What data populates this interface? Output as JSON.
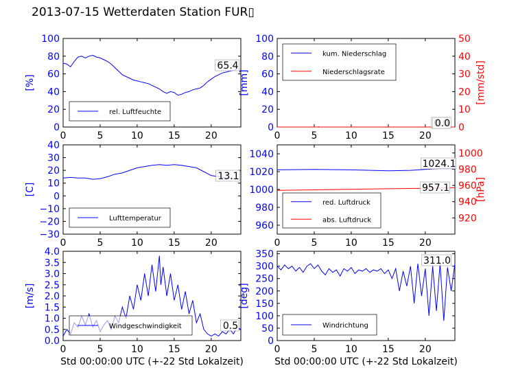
{
  "title": "2013-07-15 Wetterdaten Station FUR▯",
  "xlabel": "Std 00:00:00 UTC (+-22 Std Lokalzeit)",
  "colors": {
    "primary": "#0000ff",
    "secondary": "#ff0000",
    "axis": "#000000"
  },
  "chart_data": [
    {
      "id": "humidity",
      "type": "line",
      "xlim": [
        0,
        24
      ],
      "ylim": [
        0,
        100
      ],
      "xticks": [
        "0",
        "5",
        "10",
        "15",
        "20"
      ],
      "yticks": [
        "0",
        "20",
        "40",
        "60",
        "80",
        "100"
      ],
      "ylabel": "[%]",
      "legend": [
        "rel. Luftfeuchte"
      ],
      "legend_position": "lower-left",
      "annotations": [
        "65.4"
      ],
      "series": [
        {
          "name": "rel. Luftfeuchte",
          "color": "#0000ff",
          "points": [
            [
              0,
              72
            ],
            [
              0.5,
              71
            ],
            [
              1,
              68
            ],
            [
              1.5,
              74
            ],
            [
              2,
              79
            ],
            [
              2.5,
              80
            ],
            [
              3,
              78
            ],
            [
              3.5,
              80
            ],
            [
              4,
              81
            ],
            [
              4.5,
              79
            ],
            [
              5,
              78
            ],
            [
              5.5,
              76
            ],
            [
              6,
              74
            ],
            [
              6.5,
              71
            ],
            [
              7,
              67
            ],
            [
              7.5,
              63
            ],
            [
              8,
              59
            ],
            [
              8.5,
              57
            ],
            [
              9,
              55
            ],
            [
              9.5,
              53
            ],
            [
              10,
              52
            ],
            [
              10.5,
              51
            ],
            [
              11,
              50
            ],
            [
              11.5,
              49
            ],
            [
              12,
              47
            ],
            [
              12.5,
              45
            ],
            [
              13,
              43
            ],
            [
              13.5,
              40
            ],
            [
              14,
              38
            ],
            [
              14.5,
              40
            ],
            [
              15,
              39
            ],
            [
              15.5,
              36
            ],
            [
              16,
              37
            ],
            [
              16.5,
              39
            ],
            [
              17,
              40
            ],
            [
              17.5,
              42
            ],
            [
              18,
              43
            ],
            [
              18.5,
              44
            ],
            [
              19,
              47
            ],
            [
              19.5,
              51
            ],
            [
              20,
              54
            ],
            [
              20.5,
              57
            ],
            [
              21,
              59
            ],
            [
              21.5,
              61
            ],
            [
              22,
              62
            ],
            [
              22.5,
              63
            ],
            [
              23,
              64
            ],
            [
              23.5,
              65.4
            ]
          ]
        }
      ]
    },
    {
      "id": "precipitation",
      "type": "line",
      "xlim": [
        0,
        24
      ],
      "ylim": [
        0,
        100
      ],
      "y2lim": [
        0,
        50
      ],
      "xticks": [
        "0",
        "5",
        "10",
        "15",
        "20"
      ],
      "yticks": [
        "0",
        "20",
        "40",
        "60",
        "80",
        "100"
      ],
      "y2ticks": [
        "0",
        "10",
        "20",
        "30",
        "40",
        "50"
      ],
      "ylabel": "[mm]",
      "y2label": "[mm/std]",
      "legend": [
        "kum. Niederschlag",
        "Niederschlagsrate"
      ],
      "legend_position": "top-left",
      "annotations": [
        "0.0",
        "0.0"
      ],
      "series": [
        {
          "name": "kum. Niederschlag",
          "color": "#0000ff",
          "axis": "left",
          "points": [
            [
              0,
              0
            ],
            [
              24,
              0
            ]
          ]
        },
        {
          "name": "Niederschlagsrate",
          "color": "#ff0000",
          "axis": "right",
          "points": [
            [
              0,
              0
            ],
            [
              5.5,
              0
            ],
            [
              5.6,
              0.2
            ],
            [
              5.7,
              0
            ],
            [
              24,
              0
            ]
          ]
        }
      ]
    },
    {
      "id": "temperature",
      "type": "line",
      "xlim": [
        0,
        24
      ],
      "ylim": [
        -30,
        40
      ],
      "xticks": [
        "0",
        "5",
        "10",
        "15",
        "20"
      ],
      "yticks": [
        "−30",
        "−20",
        "−10",
        "0",
        "10",
        "20",
        "30",
        "40"
      ],
      "ylabel": "[C]",
      "legend": [
        "Lufttemperatur"
      ],
      "legend_position": "lower-left",
      "annotations": [
        "13.1"
      ],
      "series": [
        {
          "name": "Lufttemperatur",
          "color": "#0000ff",
          "points": [
            [
              0,
              14
            ],
            [
              1,
              14.5
            ],
            [
              2,
              14
            ],
            [
              3,
              14
            ],
            [
              4,
              13
            ],
            [
              5,
              13.5
            ],
            [
              6,
              15
            ],
            [
              7,
              17
            ],
            [
              8,
              18
            ],
            [
              9,
              20
            ],
            [
              10,
              22
            ],
            [
              11,
              23
            ],
            [
              12,
              24
            ],
            [
              13,
              24.5
            ],
            [
              14,
              24
            ],
            [
              15,
              24.5
            ],
            [
              16,
              24
            ],
            [
              17,
              23
            ],
            [
              18,
              22
            ],
            [
              19,
              19
            ],
            [
              20,
              16
            ],
            [
              21,
              15
            ],
            [
              22,
              14
            ],
            [
              23,
              13.5
            ],
            [
              23.8,
              13.1
            ]
          ]
        }
      ]
    },
    {
      "id": "pressure",
      "type": "line",
      "xlim": [
        0,
        24
      ],
      "ylim": [
        950,
        1050
      ],
      "y2lim": [
        900,
        1010
      ],
      "xticks": [
        "0",
        "5",
        "10",
        "15",
        "20"
      ],
      "yticks": [
        "960",
        "980",
        "1000",
        "1020",
        "1040"
      ],
      "y2ticks": [
        "920",
        "940",
        "960",
        "980",
        "1000"
      ],
      "y2label": "[hPa]",
      "legend": [
        "red. Luftdruck",
        "abs. Luftdruck"
      ],
      "legend_position": "lower-left",
      "annotations": [
        "1024.1",
        "957.1"
      ],
      "series": [
        {
          "name": "red. Luftdruck",
          "color": "#0000ff",
          "axis": "left",
          "points": [
            [
              0,
              1022
            ],
            [
              5,
              1022.5
            ],
            [
              10,
              1022
            ],
            [
              15,
              1021
            ],
            [
              18,
              1021.5
            ],
            [
              20,
              1022.5
            ],
            [
              22,
              1023.5
            ],
            [
              24,
              1024.1
            ]
          ]
        },
        {
          "name": "abs. Luftdruck",
          "color": "#ff0000",
          "axis": "right",
          "points": [
            [
              0,
              954
            ],
            [
              4,
              954.5
            ],
            [
              8,
              955
            ],
            [
              12,
              955.5
            ],
            [
              16,
              956
            ],
            [
              20,
              956.5
            ],
            [
              24,
              957.1
            ]
          ]
        }
      ]
    },
    {
      "id": "windspeed",
      "type": "line",
      "xlim": [
        0,
        24
      ],
      "ylim": [
        0,
        4
      ],
      "xticks": [
        "0",
        "5",
        "10",
        "15",
        "20"
      ],
      "yticks": [
        "0.0",
        "0.5",
        "1.0",
        "1.5",
        "2.0",
        "2.5",
        "3.0",
        "3.5",
        "4.0"
      ],
      "ylabel": "[m/s]",
      "xlabel": "Std 00:00:00 UTC (+-22 Std Lokalzeit)",
      "legend": [
        "Windgeschwindigkeit"
      ],
      "legend_position": "lower-left",
      "annotations": [
        "0.5"
      ],
      "series": [
        {
          "name": "Windgeschwindigkeit",
          "color": "#0000ff",
          "points": [
            [
              0,
              0.2
            ],
            [
              0.5,
              0.5
            ],
            [
              1,
              0.3
            ],
            [
              1.5,
              0.8
            ],
            [
              2,
              0.6
            ],
            [
              2.5,
              1.1
            ],
            [
              3,
              0.7
            ],
            [
              3.5,
              1.2
            ],
            [
              4,
              0.6
            ],
            [
              4.5,
              0.9
            ],
            [
              5,
              0.4
            ],
            [
              5.5,
              0.7
            ],
            [
              6,
              0.9
            ],
            [
              6.5,
              0.5
            ],
            [
              7,
              1.1
            ],
            [
              7.5,
              0.8
            ],
            [
              8,
              1.5
            ],
            [
              8.5,
              1.0
            ],
            [
              9,
              2.0
            ],
            [
              9.5,
              1.4
            ],
            [
              10,
              2.5
            ],
            [
              10.5,
              1.8
            ],
            [
              11,
              3.0
            ],
            [
              11.5,
              2.0
            ],
            [
              12,
              3.4
            ],
            [
              12.5,
              2.2
            ],
            [
              13,
              3.8
            ],
            [
              13.2,
              2.5
            ],
            [
              13.5,
              3.3
            ],
            [
              14,
              2.0
            ],
            [
              14.5,
              3.0
            ],
            [
              15,
              1.8
            ],
            [
              15.5,
              2.5
            ],
            [
              16,
              1.4
            ],
            [
              16.5,
              2.2
            ],
            [
              17,
              1.2
            ],
            [
              17.5,
              1.8
            ],
            [
              18,
              0.8
            ],
            [
              18.5,
              1.2
            ],
            [
              19,
              0.5
            ],
            [
              19.5,
              0.3
            ],
            [
              20,
              0.2
            ],
            [
              20.5,
              0.3
            ],
            [
              21,
              0.2
            ],
            [
              21.5,
              0.4
            ],
            [
              22,
              0.3
            ],
            [
              22.5,
              0.5
            ],
            [
              23,
              0.3
            ],
            [
              23.5,
              0.6
            ],
            [
              24,
              0.5
            ]
          ]
        }
      ]
    },
    {
      "id": "winddirection",
      "type": "line",
      "xlim": [
        0,
        24
      ],
      "ylim": [
        0,
        360
      ],
      "xticks": [
        "0",
        "5",
        "10",
        "15",
        "20"
      ],
      "yticks": [
        "0",
        "50",
        "100",
        "150",
        "200",
        "250",
        "300",
        "350"
      ],
      "ylabel": "[deg]",
      "xlabel": "Std 00:00:00 UTC (+-22 Std Lokalzeit)",
      "legend": [
        "Windrichtung"
      ],
      "legend_position": "lower-left",
      "annotations": [
        "311.0"
      ],
      "series": [
        {
          "name": "Windrichtung",
          "color": "#0000ff",
          "points": [
            [
              0,
              300
            ],
            [
              0.5,
              285
            ],
            [
              1,
              305
            ],
            [
              1.5,
              290
            ],
            [
              2,
              300
            ],
            [
              2.5,
              280
            ],
            [
              3,
              295
            ],
            [
              3.5,
              275
            ],
            [
              4,
              300
            ],
            [
              4.5,
              310
            ],
            [
              5,
              290
            ],
            [
              5.5,
              305
            ],
            [
              6,
              280
            ],
            [
              6.5,
              265
            ],
            [
              7,
              290
            ],
            [
              7.5,
              275
            ],
            [
              8,
              285
            ],
            [
              8.5,
              260
            ],
            [
              9,
              290
            ],
            [
              9.5,
              280
            ],
            [
              10,
              295
            ],
            [
              10.5,
              270
            ],
            [
              11,
              285
            ],
            [
              11.5,
              280
            ],
            [
              12,
              290
            ],
            [
              12.5,
              275
            ],
            [
              13,
              285
            ],
            [
              13.5,
              280
            ],
            [
              14,
              290
            ],
            [
              14.5,
              270
            ],
            [
              15,
              285
            ],
            [
              15.5,
              250
            ],
            [
              16,
              290
            ],
            [
              16.5,
              200
            ],
            [
              17,
              280
            ],
            [
              17.5,
              220
            ],
            [
              18,
              300
            ],
            [
              18.5,
              150
            ],
            [
              19,
              310
            ],
            [
              19.5,
              180
            ],
            [
              20,
              290
            ],
            [
              20.5,
              100
            ],
            [
              21,
              300
            ],
            [
              21.5,
              120
            ],
            [
              22,
              310
            ],
            [
              22.5,
              80
            ],
            [
              23,
              295
            ],
            [
              23.5,
              200
            ],
            [
              24,
              311
            ]
          ]
        }
      ]
    }
  ]
}
